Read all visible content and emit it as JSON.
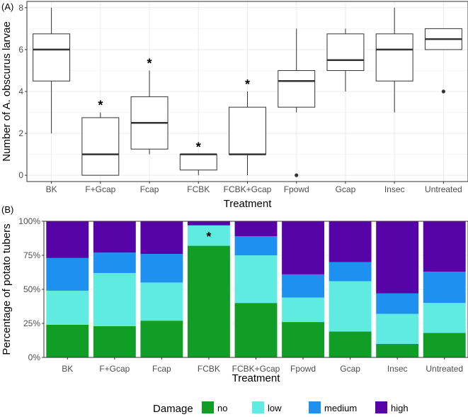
{
  "chart_data": [
    {
      "panel_label": "(A)",
      "type": "boxplot",
      "xlabel": "Treatment",
      "ylabel": "Number of A. obscurus larvae",
      "ylim": [
        -0.3,
        8.3
      ],
      "yticks": [
        "0",
        "2",
        "4",
        "6",
        "8"
      ],
      "categories": [
        "BK",
        "F+Gcap",
        "Fcap",
        "FCBK",
        "FCBK+Gcap",
        "Fpowd",
        "Gcap",
        "Insec",
        "Untreated"
      ],
      "boxes": [
        {
          "category": "BK",
          "whisker_low": 2,
          "q1": 4.5,
          "median": 6,
          "q3": 6.75,
          "whisker_high": 8,
          "outliers": [],
          "significant": false
        },
        {
          "category": "F+Gcap",
          "whisker_low": 0,
          "q1": 0,
          "median": 1,
          "q3": 2.75,
          "whisker_high": 3,
          "outliers": [],
          "significant": true
        },
        {
          "category": "Fcap",
          "whisker_low": 1,
          "q1": 1.25,
          "median": 2.5,
          "q3": 3.75,
          "whisker_high": 5,
          "outliers": [],
          "significant": true
        },
        {
          "category": "FCBK",
          "whisker_low": 0,
          "q1": 0.25,
          "median": 1,
          "q3": 1,
          "whisker_high": 1,
          "outliers": [],
          "significant": true
        },
        {
          "category": "FCBK+Gcap",
          "whisker_low": 0,
          "q1": 1,
          "median": 1,
          "q3": 3.25,
          "whisker_high": 4,
          "outliers": [],
          "significant": true
        },
        {
          "category": "Fpowd",
          "whisker_low": 3,
          "q1": 3.25,
          "median": 4.5,
          "q3": 5,
          "whisker_high": 7,
          "outliers": [
            0
          ],
          "significant": false
        },
        {
          "category": "Gcap",
          "whisker_low": 4,
          "q1": 5,
          "median": 5.5,
          "q3": 6.75,
          "whisker_high": 7,
          "outliers": [],
          "significant": false
        },
        {
          "category": "Insec",
          "whisker_low": 3,
          "q1": 4.5,
          "median": 6,
          "q3": 6.75,
          "whisker_high": 8,
          "outliers": [],
          "significant": false
        },
        {
          "category": "Untreated",
          "whisker_low": 6,
          "q1": 6,
          "median": 6.5,
          "q3": 7,
          "whisker_high": 7,
          "outliers": [
            4
          ],
          "significant": false
        }
      ],
      "significance_marker": "*",
      "grid": true
    },
    {
      "panel_label": "(B)",
      "type": "stacked-bar",
      "xlabel": "Treatment",
      "ylabel": "Percentage of potato tubers",
      "ylim": [
        0,
        100
      ],
      "yticks": [
        "0%",
        "25%",
        "50%",
        "75%",
        "100%"
      ],
      "categories": [
        "BK",
        "F+Gcap",
        "Fcap",
        "FCBK",
        "FCBK+Gcap",
        "Fpowd",
        "Gcap",
        "Insec",
        "Untreated"
      ],
      "series": [
        {
          "name": "no",
          "color": "#119E26",
          "values": [
            24,
            23,
            27,
            82,
            40,
            26,
            19,
            10,
            18
          ]
        },
        {
          "name": "low",
          "color": "#5FEBE2",
          "values": [
            25,
            39,
            28,
            15,
            35,
            18,
            37,
            22,
            22
          ]
        },
        {
          "name": "medium",
          "color": "#1E90F0",
          "values": [
            24,
            15,
            21,
            0,
            14,
            17,
            14,
            15,
            23
          ]
        },
        {
          "name": "high",
          "color": "#5603A8",
          "values": [
            27,
            23,
            24,
            3,
            11,
            39,
            30,
            53,
            37
          ]
        }
      ],
      "significant_categories": [
        "FCBK"
      ],
      "significance_marker": "*",
      "legend_title": "Damage",
      "legend_position": "bottom",
      "grid": true
    }
  ]
}
